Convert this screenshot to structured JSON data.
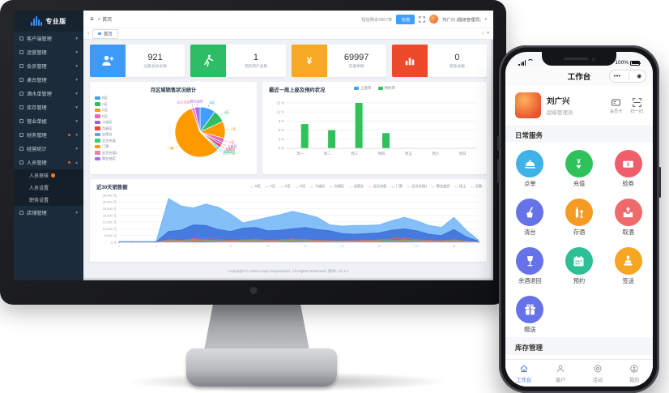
{
  "desktop": {
    "logo": {
      "brand": "专业版"
    },
    "sidebar": {
      "items": [
        {
          "label": "客户端管理",
          "icon": "client-icon"
        },
        {
          "label": "运营管理",
          "icon": "operation-icon"
        },
        {
          "label": "会员管理",
          "icon": "member-icon"
        },
        {
          "label": "桌台管理",
          "icon": "table-icon"
        },
        {
          "label": "酒水单管理",
          "icon": "drinks-icon"
        },
        {
          "label": "库存管理",
          "icon": "inventory-icon"
        },
        {
          "label": "营业单据",
          "icon": "receipt-icon"
        },
        {
          "label": "财务管理",
          "icon": "finance-icon",
          "badge": true
        },
        {
          "label": "经营统计",
          "icon": "stats-icon"
        },
        {
          "label": "人员管理",
          "icon": "staff-icon",
          "badge": true,
          "expanded": true,
          "children": [
            {
              "label": "人员审核",
              "badge": true
            },
            {
              "label": "人员设置"
            },
            {
              "label": "职务设置"
            }
          ]
        },
        {
          "label": "店铺管理",
          "icon": "shop-icon"
        }
      ]
    },
    "topbar": {
      "breadcrumb": "首页",
      "sms_text": "短信剩余2867条",
      "recharge_label": "充值",
      "user_name": "刘广兴 (超级管理员)"
    },
    "tabs": {
      "active": "首页"
    },
    "stats": [
      {
        "value": "921",
        "label": "注册会员总数",
        "color": "#3e9bf5",
        "icon": "member-add-icon"
      },
      {
        "value": "1",
        "label": "活跃用户总数",
        "color": "#2dbd64",
        "icon": "active-user-icon"
      },
      {
        "value": "69997",
        "label": "充值余额",
        "color": "#f7a824",
        "icon": "yen-icon"
      },
      {
        "value": "0",
        "label": "挂账总额",
        "color": "#ed4a2c",
        "icon": "bar-chart-icon"
      }
    ],
    "footer": "Copyright © 2020 Leqix Corporation, All Rights Reserved. 版本: v2.1.7"
  },
  "chart_data": [
    {
      "type": "pie",
      "title": "月区域销售状况统计",
      "legend_position": "left",
      "labels": [
        "B区",
        "A区",
        "C区",
        "D区",
        "卡座区",
        "包厢区",
        "加菜台",
        "会员充值",
        "门票",
        "会员充值1",
        "舞台抽奖"
      ],
      "values": [
        10,
        8,
        11,
        3,
        1.5,
        2,
        1,
        1,
        57,
        2,
        3.5
      ],
      "unit": "%",
      "colors": [
        "#409eff",
        "#2fbf62",
        "#ff9900",
        "#f268a8",
        "#9b5cf2",
        "#f23d3d",
        "#58a9ff",
        "#3dcc75",
        "#ff9900",
        "#f47fb5",
        "#a86ef5"
      ]
    },
    {
      "type": "bar",
      "title": "最近一周上座及预约状况",
      "categories": [
        "周一",
        "周二",
        "周三",
        "周四",
        "周五",
        "周六",
        "周日"
      ],
      "series": [
        {
          "name": "上座率",
          "color": "#409eff",
          "values": [
            0,
            0,
            0,
            0,
            0,
            0,
            0
          ]
        },
        {
          "name": "预约率",
          "color": "#2fc25b",
          "values": [
            8,
            6,
            15,
            5,
            0,
            0,
            0
          ]
        }
      ],
      "ylim": [
        0,
        15
      ],
      "yticks": [
        "0 %",
        "3 %",
        "6 %",
        "9 %",
        "12 %",
        "15 %"
      ],
      "grid": true,
      "legend_position": "top"
    },
    {
      "type": "area",
      "title": "近30天销售额",
      "legend": [
        "B区",
        "A区",
        "C区",
        "D区",
        "卡座区",
        "包厢区",
        "加菜台",
        "会员充值",
        "门票",
        "会员充值1",
        "舞台抽奖",
        "线上",
        "总额"
      ],
      "legend_colors": [
        "#f25e5e",
        "#5b8ff9",
        "#49c2c8",
        "#f0a35e",
        "#9aa0a6",
        "#5b8ff9",
        "#f0a35e",
        "#f0864a",
        "#4a77d4",
        "#6aa8f0",
        "#9aa0a6",
        "#e85b5b",
        "#5aa9f5"
      ],
      "x": [
        "1",
        "2",
        "3",
        "4",
        "5",
        "6",
        "7",
        "8",
        "9",
        "10",
        "11",
        "12",
        "13",
        "14",
        "15",
        "16",
        "17",
        "18",
        "19",
        "20",
        "21",
        "22",
        "23",
        "24",
        "25",
        "26",
        "27",
        "28",
        "29",
        "30"
      ],
      "ylim": [
        0,
        35000
      ],
      "yticks": [
        "0 元",
        "5,000 元",
        "10,000 元",
        "15,000 元",
        "20,000 元",
        "25,000 元",
        "30,000 元",
        "35,000 元"
      ],
      "series": [
        {
          "name": "总额",
          "color": "#74b6f7",
          "fill": true,
          "values": [
            600,
            600,
            600,
            600,
            32500,
            27000,
            25500,
            28500,
            26000,
            21000,
            14500,
            16500,
            18500,
            20500,
            23000,
            21000,
            18500,
            13000,
            12000,
            12500,
            12500,
            13000,
            16000,
            18500,
            16000,
            12500,
            11000,
            18500,
            9000,
            1500
          ]
        },
        {
          "name": "门票",
          "color": "#3e71d9",
          "fill": true,
          "values": [
            300,
            300,
            300,
            300,
            8000,
            9000,
            13000,
            12500,
            9500,
            8000,
            10500,
            11000,
            8500,
            9000,
            10000,
            11000,
            9500,
            8500,
            6500,
            6000,
            6500,
            7000,
            9000,
            10000,
            8500,
            6000,
            5000,
            9500,
            4000,
            800
          ]
        },
        {
          "name": "包厢区",
          "color": "#f25e5e",
          "values": [
            0,
            0,
            0,
            0,
            2000,
            1500,
            2500,
            3500,
            2000,
            1500,
            1800,
            2200,
            1500,
            1800,
            2500,
            2000,
            1500,
            1200,
            1000,
            1200,
            1500,
            1800,
            2500,
            3000,
            2000,
            1500,
            1200,
            2000,
            800,
            200
          ]
        },
        {
          "name": "会员充值",
          "color": "#3dcc75",
          "values": [
            0,
            0,
            0,
            0,
            1500,
            1000,
            2000,
            1800,
            1200,
            900,
            1500,
            1600,
            1000,
            1200,
            1800,
            1500,
            1000,
            800,
            700,
            800,
            1000,
            1200,
            1500,
            1800,
            1200,
            900,
            700,
            1500,
            500,
            100
          ]
        },
        {
          "name": "C区",
          "color": "#ff9900",
          "values": [
            0,
            0,
            0,
            0,
            1200,
            800,
            1500,
            1400,
            900,
            700,
            1100,
            1200,
            800,
            900,
            1300,
            1100,
            800,
            600,
            500,
            600,
            800,
            900,
            1100,
            1300,
            900,
            700,
            500,
            1100,
            400,
            100
          ]
        },
        {
          "name": "卡座区",
          "color": "#9b5cf2",
          "values": [
            0,
            0,
            0,
            0,
            600,
            400,
            800,
            700,
            500,
            350,
            550,
            600,
            400,
            450,
            650,
            550,
            400,
            300,
            250,
            300,
            400,
            450,
            550,
            650,
            450,
            350,
            250,
            550,
            200,
            50
          ]
        }
      ]
    }
  ],
  "phone": {
    "statusbar": {
      "battery": "100%"
    },
    "title": "工作台",
    "user": {
      "name": "刘广兴",
      "role": "超级管理员"
    },
    "quick": [
      {
        "label": "会员卡",
        "icon": "member-card-icon"
      },
      {
        "label": "扫一扫",
        "icon": "scan-icon"
      }
    ],
    "sections": [
      {
        "title": "日常服务",
        "items": [
          {
            "label": "点单",
            "color": "#3fb3e8",
            "icon": "order-icon"
          },
          {
            "label": "充值",
            "color": "#2fc25b",
            "icon": "recharge-icon"
          },
          {
            "label": "验券",
            "color": "#ef5e6b",
            "icon": "coupon-icon"
          },
          {
            "label": "清台",
            "color": "#6672e8",
            "icon": "clean-icon"
          },
          {
            "label": "存酒",
            "color": "#f59a23",
            "icon": "store-wine-icon"
          },
          {
            "label": "取酒",
            "color": "#ef6b6b",
            "icon": "take-wine-icon"
          },
          {
            "label": "余酒退回",
            "color": "#6672e8",
            "icon": "return-wine-icon"
          },
          {
            "label": "预约",
            "color": "#2dbf96",
            "icon": "booking-icon"
          },
          {
            "label": "签送",
            "color": "#f5a623",
            "icon": "sign-icon"
          },
          {
            "label": "赠送",
            "color": "#6672e8",
            "icon": "gift-icon"
          }
        ]
      },
      {
        "title": "库存管理",
        "items": [
          {
            "label": "",
            "color": "#6672e8",
            "icon": "teapot-icon"
          },
          {
            "label": "",
            "color": "#2dbf96",
            "icon": "bottle-icon"
          },
          {
            "label": "",
            "color": "#6672e8",
            "icon": "bag-icon"
          }
        ]
      }
    ],
    "tabbar": [
      {
        "label": "工作台",
        "icon": "home-icon",
        "active": true
      },
      {
        "label": "客户",
        "icon": "customers-icon",
        "active": false
      },
      {
        "label": "活动",
        "icon": "activity-icon",
        "active": false
      },
      {
        "label": "我的",
        "icon": "mine-icon",
        "active": false
      }
    ]
  }
}
